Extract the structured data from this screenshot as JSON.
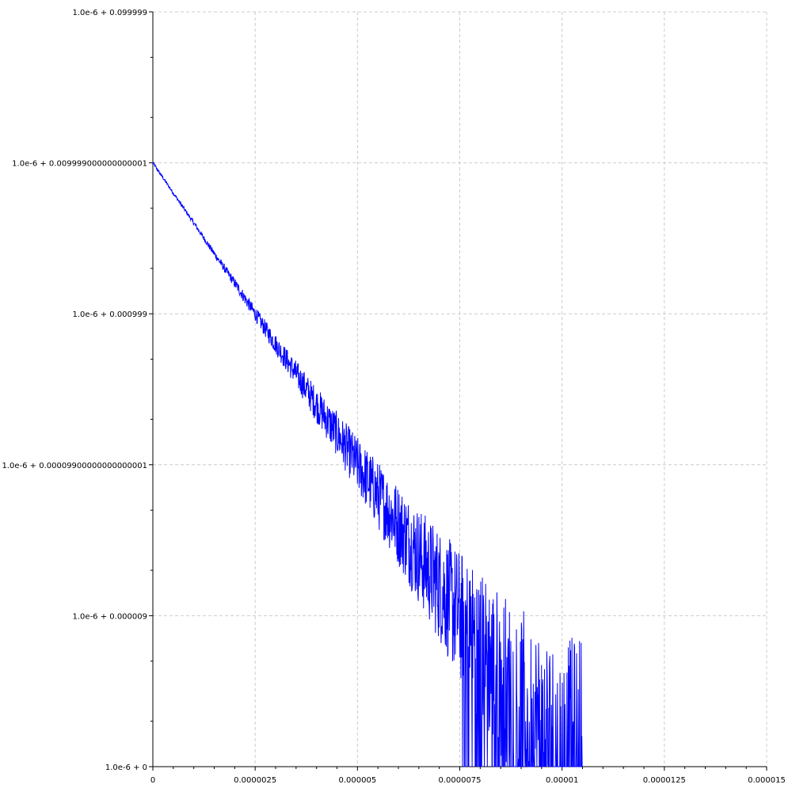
{
  "chart_data": {
    "type": "line",
    "title": "",
    "xlabel": "",
    "ylabel": "",
    "xlim": [
      0,
      1.5e-05
    ],
    "y_scale": "log",
    "y_offset": 1e-06,
    "ylim": [
      1e-06,
      0.1
    ],
    "grid": true,
    "legend": "none",
    "x_ticks": [
      {
        "value": 0,
        "label": "0"
      },
      {
        "value": 2.5e-06,
        "label": "0.0000025"
      },
      {
        "value": 5e-06,
        "label": "0.000005"
      },
      {
        "value": 7.5e-06,
        "label": "0.0000075"
      },
      {
        "value": 1e-05,
        "label": "0.00001"
      },
      {
        "value": 1.25e-05,
        "label": "0.0000125"
      },
      {
        "value": 1.5e-05,
        "label": "0.000015"
      }
    ],
    "y_ticks": [
      {
        "value": 0.1,
        "label": "1.0e-6 + 0.099999"
      },
      {
        "value": 0.01,
        "label": "1.0e-6 + 0.009999000000000001"
      },
      {
        "value": 0.001,
        "label": "1.0e-6 + 0.000999"
      },
      {
        "value": 0.0001,
        "label": "1.0e-6 + 0.00009900000000000001"
      },
      {
        "value": 1e-05,
        "label": "1.0e-6 + 0.000009"
      },
      {
        "value": 1e-06,
        "label": "1.0e-6 + 0"
      }
    ],
    "series": [
      {
        "color": "#0000ff",
        "x": [
          0,
          5e-07,
          1e-06,
          1.5e-06,
          2e-06,
          2.5e-06,
          3e-06,
          3.5e-06,
          4e-06,
          4.5e-06,
          5e-06,
          5.5e-06,
          6e-06,
          6.5e-06,
          7e-06,
          7.5e-06,
          8e-06,
          8.5e-06,
          9e-06,
          9.5e-06,
          1e-05,
          1.05e-05
        ],
        "y": [
          0.01,
          0.0063,
          0.004,
          0.0025,
          0.0016,
          0.001,
          0.00063,
          0.0004,
          0.00025,
          0.00016,
          0.0001,
          6.3e-05,
          4e-05,
          2.5e-05,
          1.6e-05,
          1e-05,
          6.3e-06,
          4e-06,
          2.5e-06,
          1.6e-06,
          1e-06,
          1e-06
        ]
      }
    ]
  }
}
